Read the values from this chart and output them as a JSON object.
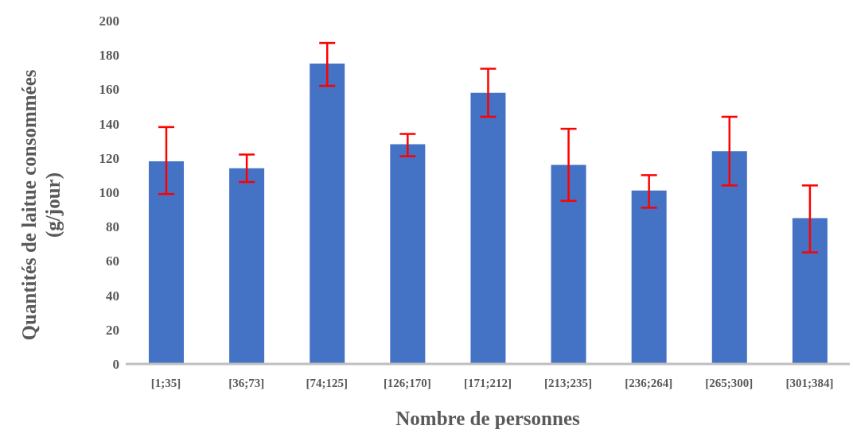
{
  "chart_data": {
    "type": "bar",
    "xlabel": "Nombre de personnes",
    "ylabel": "Quantités de laitue consommées (g/jour)",
    "categories": [
      "[1;35]",
      "[36;73]",
      "[74;125]",
      "[126;170]",
      "[171;212]",
      "[213;235]",
      "[236;264]",
      "[265;300]",
      "[301;384]"
    ],
    "values": [
      118,
      114,
      175,
      128,
      158,
      116,
      101,
      124,
      85
    ],
    "errors": [
      [
        99,
        138
      ],
      [
        106,
        122
      ],
      [
        162,
        187
      ],
      [
        121,
        134
      ],
      [
        144,
        172
      ],
      [
        95,
        137
      ],
      [
        91,
        110
      ],
      [
        104,
        144
      ],
      [
        65,
        104
      ]
    ],
    "color": "#4472c4",
    "ylim": [
      0,
      200
    ],
    "yticks": [
      0,
      20,
      40,
      60,
      80,
      100,
      120,
      140,
      160,
      180,
      200
    ],
    "grid": false
  }
}
